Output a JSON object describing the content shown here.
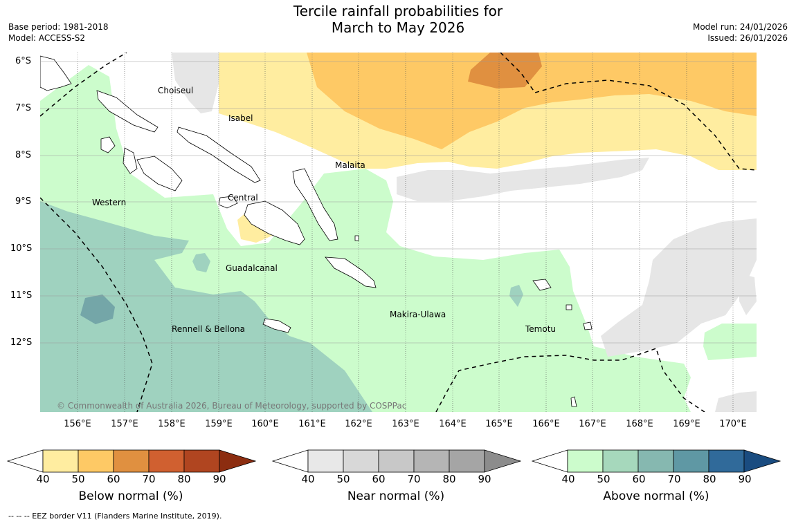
{
  "title_line1": "Tercile rainfall probabilities for",
  "title_line2": "March to May 2026",
  "meta_left": {
    "base_period": "Base period: 1981-2018",
    "model": "Model: ACCESS-S2"
  },
  "meta_right": {
    "model_run": "Model run: 24/01/2026",
    "issued": "Issued: 26/01/2026"
  },
  "lat_labels": [
    "6°S",
    "7°S",
    "8°S",
    "9°S",
    "10°S",
    "11°S",
    "12°S"
  ],
  "lon_labels": [
    "156°E",
    "157°E",
    "158°E",
    "159°E",
    "160°E",
    "161°E",
    "162°E",
    "163°E",
    "164°E",
    "165°E",
    "166°E",
    "167°E",
    "168°E",
    "169°E",
    "170°E"
  ],
  "regions": {
    "choiseul": "Choiseul",
    "isabel": "Isabel",
    "malaita": "Malaita",
    "western": "Western",
    "central": "Central",
    "guadalcanal": "Guadalcanal",
    "makira": "Makira-Ulawa",
    "temotu": "Temotu",
    "rennell": "Rennell & Bellona"
  },
  "copyright": "© Commonwealth of Australia 2026, Bureau of Meteorology, supported by COSPPac",
  "colorbars": [
    {
      "label": "Below normal (%)",
      "ticks": [
        "40",
        "50",
        "60",
        "70",
        "80",
        "90"
      ],
      "colors": [
        "#ffeda0",
        "#fec965",
        "#e09040",
        "#d06030",
        "#b04520",
        "#8c2d10"
      ]
    },
    {
      "label": "Near normal (%)",
      "ticks": [
        "40",
        "50",
        "60",
        "70",
        "80",
        "90"
      ],
      "colors": [
        "#e8e8e8",
        "#d8d8d8",
        "#c8c8c8",
        "#b5b5b5",
        "#a5a5a5",
        "#8c8c8c"
      ]
    },
    {
      "label": "Above normal (%)",
      "ticks": [
        "40",
        "50",
        "60",
        "70",
        "80",
        "90"
      ],
      "colors": [
        "#ccfccc",
        "#a6d8bc",
        "#86b8b0",
        "#5f98a4",
        "#306a9a",
        "#1a4c80"
      ]
    }
  ],
  "footnote": "--  --  -- EEZ border V11 (Flanders Marine Institute, 2019)."
}
